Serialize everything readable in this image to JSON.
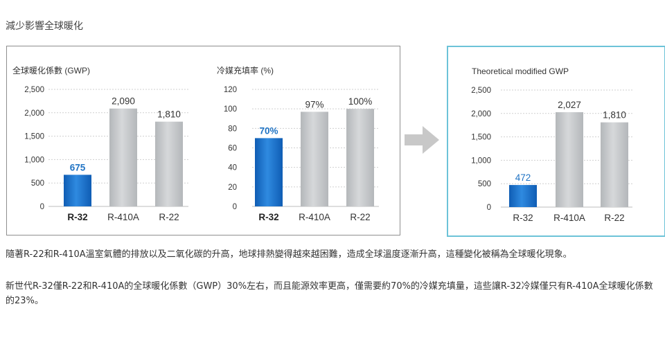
{
  "heading": "減少影響全球暖化",
  "paragraphs": [
    "隨著R-22和R-410A溫室氣體的排放以及二氧化碳的升高，地球排熱變得越來越困難，造成全球溫度逐漸升高，這種變化被稱為全球暖化現象。",
    "新世代R-32僅R-22和R-410A的全球暖化係數（GWP）30%左右，而且能源效率更高，僅需要約70%的冷媒充填量，這些讓R-32冷媒僅只有R-410A全球暖化係數的23%。"
  ],
  "colors": {
    "highlight": "#1f73c4",
    "bar_grey": "#c3c6c8",
    "panel_border_blue": "#6cc3d8"
  },
  "arrow_icon": "right-arrow-icon",
  "chart_data": [
    {
      "type": "bar",
      "title": "全球暖化係數 (GWP)",
      "categories": [
        "R-32",
        "R-410A",
        "R-22"
      ],
      "values": [
        675,
        2090,
        1810
      ],
      "value_labels": [
        "675",
        "2,090",
        "1,810"
      ],
      "ylim": [
        0,
        2500
      ],
      "yticks": [
        0,
        500,
        1000,
        1500,
        2000,
        2500
      ],
      "ytick_labels": [
        "0",
        "500",
        "1,000",
        "1,500",
        "2,000",
        "2,500"
      ],
      "highlight_index": 0,
      "grid": true
    },
    {
      "type": "bar",
      "title": "冷媒充填率 (%)",
      "categories": [
        "R-32",
        "R-410A",
        "R-22"
      ],
      "values": [
        70,
        97,
        100
      ],
      "value_labels": [
        "70%",
        "97%",
        "100%"
      ],
      "ylim": [
        0,
        120
      ],
      "yticks": [
        0,
        20,
        40,
        60,
        80,
        100,
        120
      ],
      "ytick_labels": [
        "0",
        "20",
        "40",
        "60",
        "80",
        "100",
        "120"
      ],
      "highlight_index": 0,
      "grid": true
    },
    {
      "type": "bar",
      "title": "Theoretical modified GWP",
      "categories": [
        "R-32",
        "R-410A",
        "R-22"
      ],
      "values": [
        472,
        2027,
        1810
      ],
      "value_labels": [
        "472",
        "2,027",
        "1,810"
      ],
      "ylim": [
        0,
        2500
      ],
      "yticks": [
        0,
        500,
        1000,
        1500,
        2000,
        2500
      ],
      "ytick_labels": [
        "0",
        "500",
        "1,000",
        "1,500",
        "2,000",
        "2,500"
      ],
      "highlight_index": 0,
      "grid": true
    }
  ]
}
